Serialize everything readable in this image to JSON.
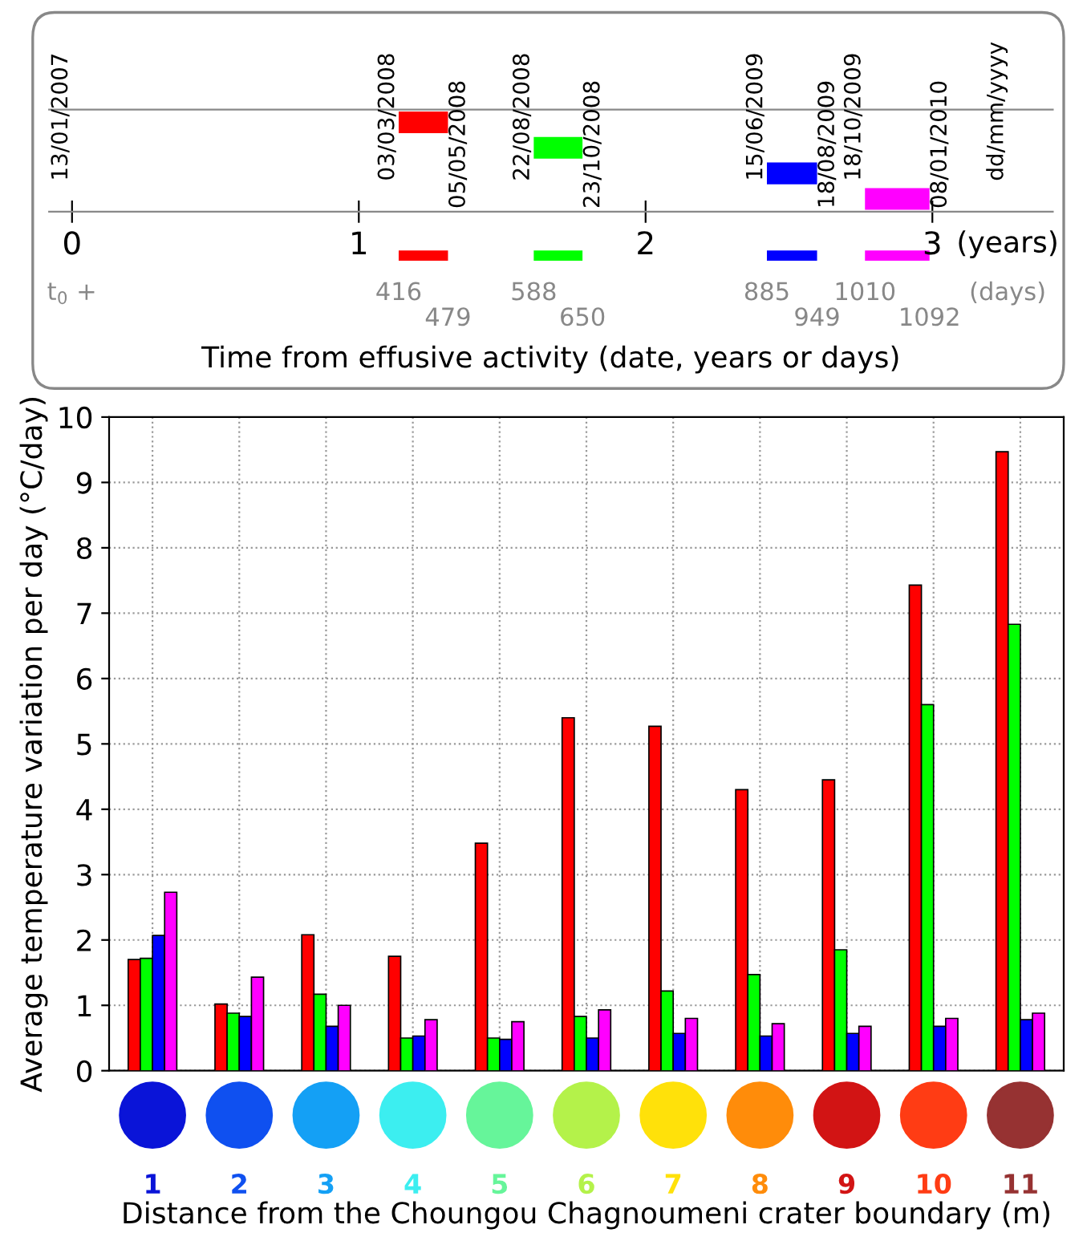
{
  "chart_data": [
    {
      "type": "bar",
      "orientation": "horizontal",
      "xlabel": "Time from effusive activity (date, years or days)",
      "xlim": [
        -0.08,
        3.42
      ],
      "xticks": [
        0,
        1,
        2,
        3
      ],
      "tick_labels": "x",
      "categories": [
        null,
        null,
        null,
        null
      ],
      "base": [
        1.139,
        1.61,
        2.423,
        2.765
      ],
      "values": [
        0.172,
        0.17,
        0.175,
        0.225
      ],
      "colors": [
        "#ff0000",
        "#00ff00",
        "#0000ff",
        "#ff00ff"
      ],
      "annotations": [
        "13/01/2007",
        "03/03/2008",
        "05/05/2008",
        "22/08/2008",
        "23/10/2008",
        "15/06/2009",
        "18/08/2009",
        "18/10/2009",
        "08/01/2010",
        "dd/mm/yyyy",
        "(years)",
        "t$_{0}$ +",
        "416",
        "479",
        "588",
        "650",
        "885",
        "949",
        "1010",
        "1092",
        "(days)"
      ]
    },
    {
      "type": "bar",
      "ylabel": "Average temperature variation per day (°C/day)",
      "xlabel": "Distance from the Choungou Chagnoumeni crater boundary (m)",
      "categories": [
        "1",
        "2",
        "3",
        "4",
        "5",
        "6",
        "7",
        "8",
        "9",
        "10",
        "11"
      ],
      "ylim": [
        0,
        10
      ],
      "yticks": [
        0,
        1,
        2,
        3,
        4,
        5,
        6,
        7,
        8,
        9,
        10
      ],
      "grid": true,
      "legend": false,
      "series": [
        {
          "color": "#ff0000",
          "values": [
            1.7,
            1.02,
            2.08,
            1.75,
            3.48,
            5.4,
            5.27,
            4.3,
            4.45,
            7.43,
            9.47
          ]
        },
        {
          "color": "#00ff00",
          "values": [
            1.72,
            0.88,
            1.17,
            0.5,
            0.5,
            0.83,
            1.22,
            1.47,
            1.85,
            5.6,
            6.83
          ]
        },
        {
          "color": "#0000ff",
          "values": [
            2.07,
            0.83,
            0.68,
            0.53,
            0.48,
            0.5,
            0.57,
            0.53,
            0.57,
            0.68,
            0.78
          ]
        },
        {
          "color": "#ff00ff",
          "values": [
            2.73,
            1.43,
            1.0,
            0.78,
            0.75,
            0.93,
            0.8,
            0.72,
            0.68,
            0.8,
            0.88
          ]
        }
      ]
    }
  ]
}
